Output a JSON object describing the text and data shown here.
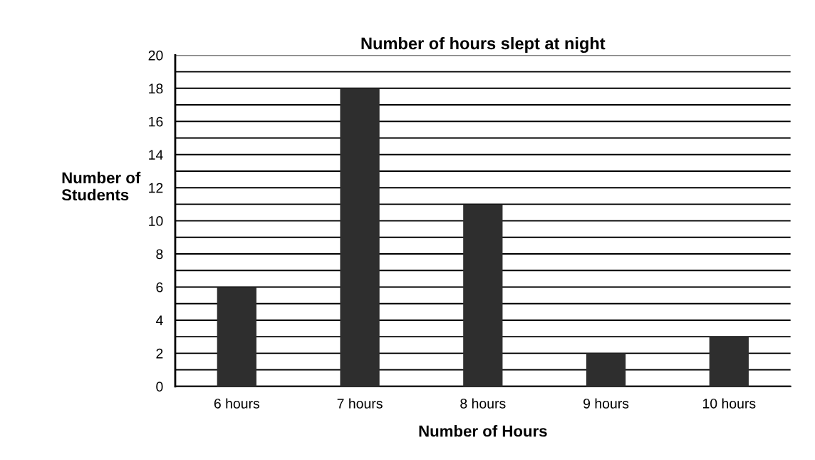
{
  "chart_data": {
    "type": "bar",
    "title": "Number of hours slept at night",
    "xlabel": "Number of Hours",
    "ylabel": "Number of\nStudents",
    "categories": [
      "6 hours",
      "7 hours",
      "8 hours",
      "9 hours",
      "10 hours"
    ],
    "values": [
      6,
      18,
      11,
      2,
      3
    ],
    "color": "#2e2e2e",
    "ylim": [
      0,
      20
    ],
    "yticks": [
      0,
      {
        "value": 1,
        "label": null
      },
      2,
      {
        "value": 3,
        "label": null
      },
      4,
      {
        "value": 5,
        "label": null
      },
      6,
      {
        "value": 7,
        "label": null
      },
      8,
      {
        "value": 9,
        "label": null
      },
      10,
      {
        "value": 11,
        "label": null
      },
      12,
      {
        "value": 13,
        "label": null
      },
      14,
      {
        "value": 15,
        "label": null
      },
      16,
      {
        "value": 17,
        "label": null
      },
      18,
      {
        "value": 19,
        "label": null
      },
      20
    ],
    "grid": "y"
  }
}
